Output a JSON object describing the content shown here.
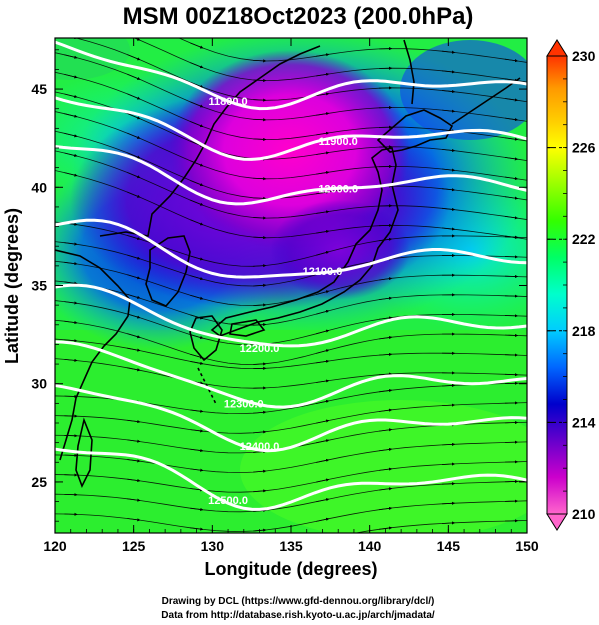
{
  "title": "MSM 00Z18Oct2023 (200.0hPa)",
  "x_axis": {
    "label": "Longitude (degrees)",
    "ticks": [
      120,
      125,
      130,
      135,
      140,
      145,
      150
    ],
    "range": [
      120,
      150
    ]
  },
  "y_axis": {
    "label": "Latitude  (degrees)",
    "ticks": [
      25,
      30,
      35,
      40,
      45
    ],
    "range": [
      22.4,
      47.6
    ]
  },
  "colorbar": {
    "ticks": [
      210,
      214,
      218,
      222,
      226,
      230
    ],
    "range": [
      210,
      230
    ],
    "colors": [
      "#ff66cc",
      "#cc00cc",
      "#6600cc",
      "#0000cc",
      "#0066ff",
      "#00ccff",
      "#00ffcc",
      "#00ff66",
      "#33ff00",
      "#99ff00",
      "#ffff00",
      "#ffcc00",
      "#ff9900",
      "#ff3300"
    ]
  },
  "contours": [
    {
      "label": "11800.0",
      "lat_at_138": 46.0
    },
    {
      "label": "11900.0",
      "lat_at_138": 43.4
    },
    {
      "label": "12000.0",
      "lat_at_138": 41.0
    },
    {
      "label": "12100.0",
      "lat_at_138": 37.0
    },
    {
      "label": "12200.0",
      "lat_at_138": 33.6
    },
    {
      "label": "12300.0",
      "lat_at_138": 30.7
    },
    {
      "label": "12400.0",
      "lat_at_138": 28.6
    },
    {
      "label": "12500.0",
      "lat_at_138": 25.6
    }
  ],
  "credits": {
    "line1": "Drawing by DCL (https://www.gfd-dennou.org/library/dcl/)",
    "line2": "Data from http://database.rish.kyoto-u.ac.jp/arch/jmadata/"
  }
}
